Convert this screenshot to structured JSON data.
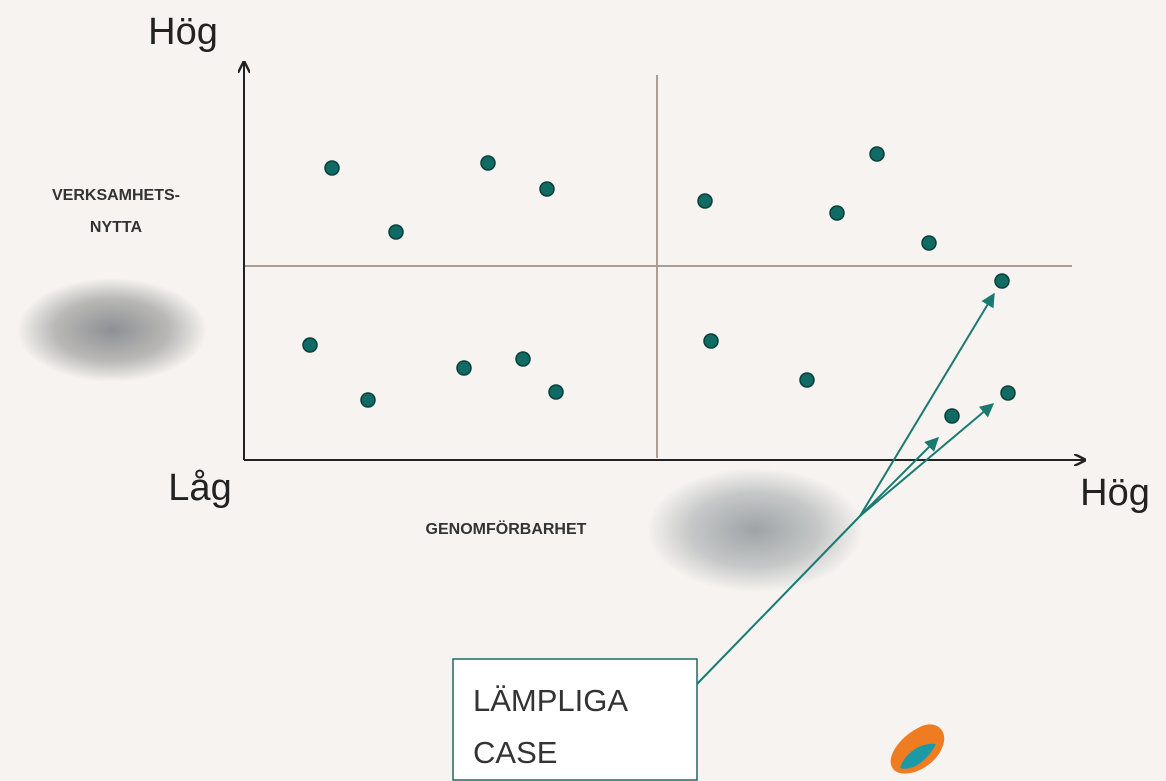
{
  "axes": {
    "y_high": "Hög",
    "origin": "Låg",
    "x_high": "Hög"
  },
  "y_axis_label": [
    "VERKSAMHETS-",
    "NYTTA"
  ],
  "x_axis_label": "GENOMFÖRBARHET",
  "callout": [
    "LÄMPLIGA",
    "CASE"
  ]
}
